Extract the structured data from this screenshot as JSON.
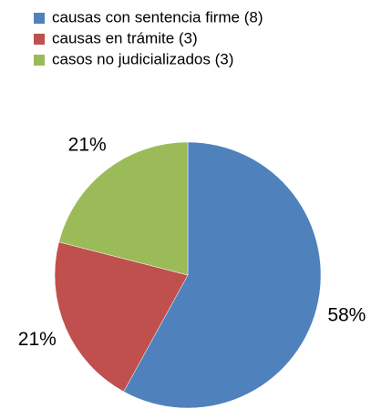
{
  "chart_data": {
    "type": "pie",
    "categories": [
      "causas con sentencia firme (8)",
      "causas en trámite (3)",
      "casos no judicializados (3)"
    ],
    "values": [
      58,
      21,
      21
    ],
    "value_labels": [
      "58%",
      "21%",
      "21%"
    ],
    "colors": [
      "#4f81bd",
      "#c0504d",
      "#9bbb59"
    ]
  }
}
